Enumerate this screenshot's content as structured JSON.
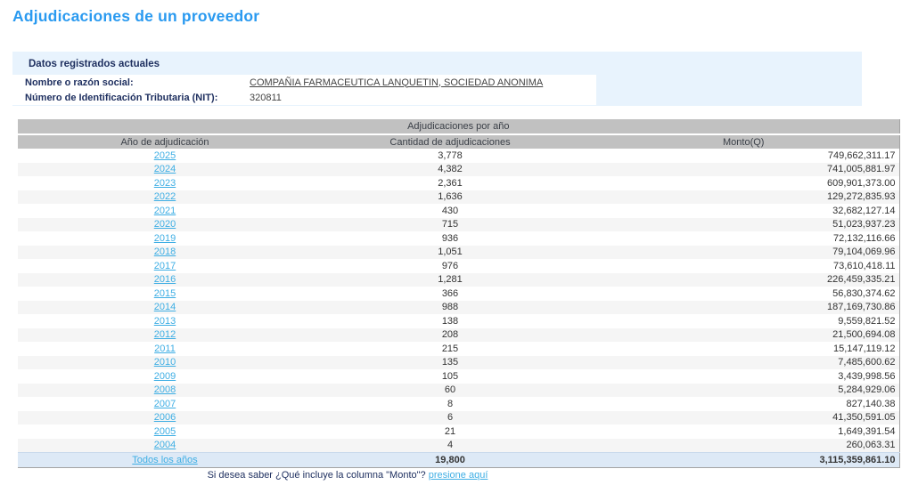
{
  "page": {
    "title": "Adjudicaciones de un proveedor"
  },
  "colors": {
    "title_blue": "#2a9af0",
    "link_blue": "#3eaee4",
    "navy_text": "#1f3060",
    "info_box_bg": "#e8f3fd",
    "table_header_gray": "#c1c1c1",
    "alt_row_gray": "#f5f5f5",
    "total_row_bg": "#dde9f6"
  },
  "info_box": {
    "header": "Datos registrados actuales",
    "fields": [
      {
        "label": "Nombre o razón social:",
        "value": "COMPAÑIA FARMACEUTICA LANQUETIN, SOCIEDAD ANONIMA"
      },
      {
        "label": "Número de Identificación Tributaria (NIT):",
        "value": "320811"
      }
    ]
  },
  "table": {
    "caption": "Adjudicaciones por año",
    "columns": [
      "Año de adjudicación",
      "Cantidad de adjudicaciones",
      "Monto(Q)"
    ],
    "rows": [
      {
        "year": "2025",
        "cantidad": "3,778",
        "monto": "749,662,311.17"
      },
      {
        "year": "2024",
        "cantidad": "4,382",
        "monto": "741,005,881.97"
      },
      {
        "year": "2023",
        "cantidad": "2,361",
        "monto": "609,901,373.00"
      },
      {
        "year": "2022",
        "cantidad": "1,636",
        "monto": "129,272,835.93"
      },
      {
        "year": "2021",
        "cantidad": "430",
        "monto": "32,682,127.14"
      },
      {
        "year": "2020",
        "cantidad": "715",
        "monto": "51,023,937.23"
      },
      {
        "year": "2019",
        "cantidad": "936",
        "monto": "72,132,116.66"
      },
      {
        "year": "2018",
        "cantidad": "1,051",
        "monto": "79,104,069.96"
      },
      {
        "year": "2017",
        "cantidad": "976",
        "monto": "73,610,418.11"
      },
      {
        "year": "2016",
        "cantidad": "1,281",
        "monto": "226,459,335.21"
      },
      {
        "year": "2015",
        "cantidad": "366",
        "monto": "56,830,374.62"
      },
      {
        "year": "2014",
        "cantidad": "988",
        "monto": "187,169,730.86"
      },
      {
        "year": "2013",
        "cantidad": "138",
        "monto": "9,559,821.52"
      },
      {
        "year": "2012",
        "cantidad": "208",
        "monto": "21,500,694.08"
      },
      {
        "year": "2011",
        "cantidad": "215",
        "monto": "15,147,119.12"
      },
      {
        "year": "2010",
        "cantidad": "135",
        "monto": "7,485,600.62"
      },
      {
        "year": "2009",
        "cantidad": "105",
        "monto": "3,439,998.56"
      },
      {
        "year": "2008",
        "cantidad": "60",
        "monto": "5,284,929.06"
      },
      {
        "year": "2007",
        "cantidad": "8",
        "monto": "827,140.38"
      },
      {
        "year": "2006",
        "cantidad": "6",
        "monto": "41,350,591.05"
      },
      {
        "year": "2005",
        "cantidad": "21",
        "monto": "1,649,391.54"
      },
      {
        "year": "2004",
        "cantidad": "4",
        "monto": "260,063.31"
      }
    ],
    "total_row": {
      "label": "Todos los años",
      "cantidad": "19,800",
      "monto": "3,115,359,861.10"
    }
  },
  "footer": {
    "text": "Si desea saber ¿Qué incluye la columna \"Monto\"?",
    "link": "presione aquí"
  }
}
